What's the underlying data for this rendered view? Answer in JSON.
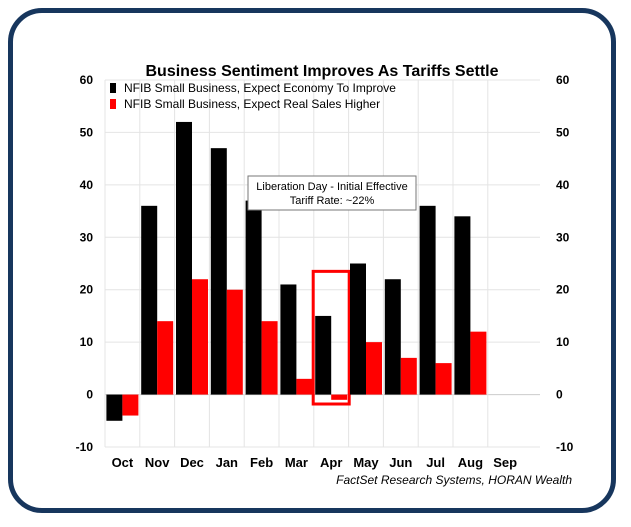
{
  "chart_data": {
    "type": "bar",
    "title": "Business Sentiment Improves As Tariffs Settle",
    "categories": [
      "Oct",
      "Nov",
      "Dec",
      "Jan",
      "Feb",
      "Mar",
      "Apr",
      "May",
      "Jun",
      "Jul",
      "Aug",
      "Sep"
    ],
    "series": [
      {
        "name": "NFIB Small Business, Expect Economy To Improve",
        "color": "#000000",
        "values": [
          -5,
          36,
          52,
          47,
          37,
          21,
          15,
          25,
          22,
          36,
          34,
          null
        ]
      },
      {
        "name": "NFIB Small Business, Expect Real Sales Higher",
        "color": "#ff0000",
        "values": [
          -4,
          14,
          22,
          20,
          14,
          3,
          -1,
          10,
          7,
          6,
          12,
          null
        ]
      }
    ],
    "ylim": [
      -10,
      60
    ],
    "yticks": [
      -10,
      0,
      10,
      20,
      30,
      40,
      50,
      60
    ],
    "grid": true,
    "legend": "top-left",
    "annotation": {
      "line1": "Liberation Day - Initial Effective",
      "line2": "Tariff Rate: ~22%",
      "highlight_category": "Apr"
    },
    "source": "FactSet Research Systems, HORAN Wealth"
  }
}
